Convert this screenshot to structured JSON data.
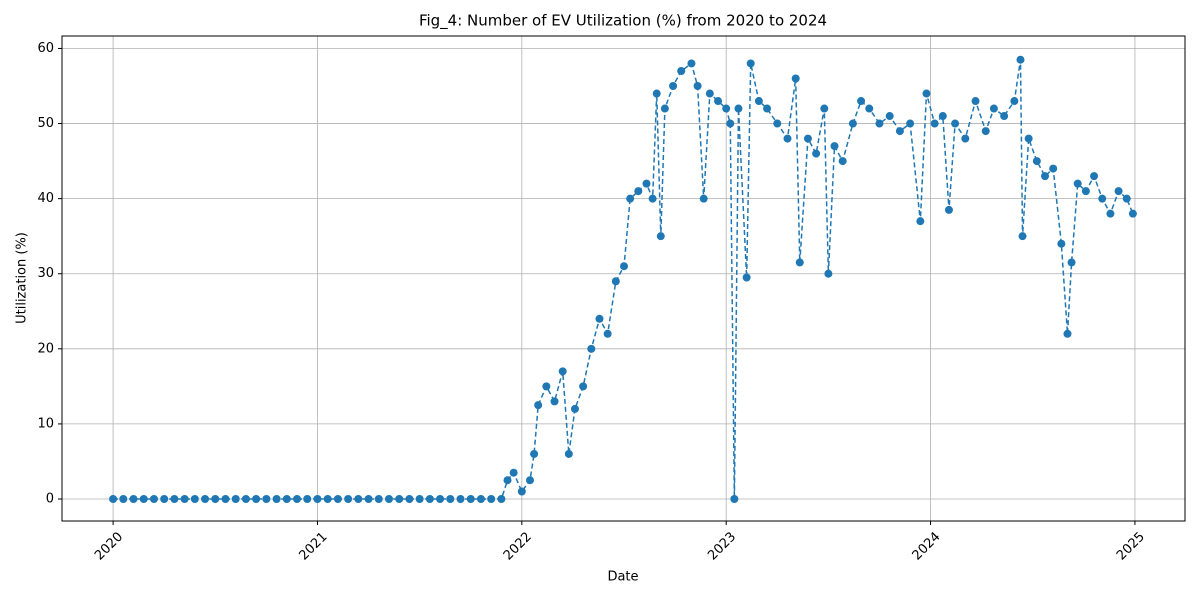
{
  "chart_data": {
    "type": "line",
    "title": "Fig_4: Number of EV Utilization (%) from 2020 to 2024",
    "x_label": "Date",
    "y_label": "Utilization (%)",
    "x": [
      2020,
      2020.05,
      2020.1,
      2020.15,
      2020.2,
      2020.25,
      2020.3,
      2020.35,
      2020.4,
      2020.45,
      2020.5,
      2020.55,
      2020.6,
      2020.65,
      2020.7,
      2020.75,
      2020.8,
      2020.85,
      2020.9,
      2020.95,
      2021,
      2021.05,
      2021.1,
      2021.15,
      2021.2,
      2021.25,
      2021.3,
      2021.35,
      2021.4,
      2021.45,
      2021.5,
      2021.55,
      2021.6,
      2021.65,
      2021.7,
      2021.75,
      2021.8,
      2021.85,
      2021.9,
      2021.93,
      2021.96,
      2022,
      2022.04,
      2022.06,
      2022.08,
      2022.12,
      2022.16,
      2022.2,
      2022.23,
      2022.26,
      2022.3,
      2022.34,
      2022.38,
      2022.42,
      2022.46,
      2022.5,
      2022.53,
      2022.57,
      2022.61,
      2022.64,
      2022.66,
      2022.68,
      2022.7,
      2022.74,
      2022.78,
      2022.83,
      2022.86,
      2022.89,
      2022.92,
      2022.96,
      2023,
      2023.02,
      2023.04,
      2023.06,
      2023.1,
      2023.12,
      2023.16,
      2023.2,
      2023.25,
      2023.3,
      2023.34,
      2023.36,
      2023.4,
      2023.44,
      2023.48,
      2023.5,
      2023.53,
      2023.57,
      2023.62,
      2023.66,
      2023.7,
      2023.75,
      2023.8,
      2023.85,
      2023.9,
      2023.95,
      2023.98,
      2024.02,
      2024.06,
      2024.09,
      2024.12,
      2024.17,
      2024.22,
      2024.27,
      2024.31,
      2024.36,
      2024.41,
      2024.44,
      2024.45,
      2024.48,
      2024.52,
      2024.56,
      2024.6,
      2024.64,
      2024.67,
      2024.69,
      2024.72,
      2024.76,
      2024.8,
      2024.84,
      2024.88,
      2024.92,
      2024.96,
      2024.99
    ],
    "series": [
      {
        "color": "#1f77b4",
        "values": [
          0,
          0,
          0,
          0,
          0,
          0,
          0,
          0,
          0,
          0,
          0,
          0,
          0,
          0,
          0,
          0,
          0,
          0,
          0,
          0,
          0,
          0,
          0,
          0,
          0,
          0,
          0,
          0,
          0,
          0,
          0,
          0,
          0,
          0,
          0,
          0,
          0,
          0,
          0,
          2.5,
          3.5,
          1,
          2.5,
          6,
          12.5,
          15,
          13,
          17,
          6,
          12,
          15,
          20,
          24,
          22,
          29,
          31,
          40,
          41,
          42,
          40,
          54,
          35,
          52,
          55,
          57,
          58,
          55,
          40,
          54,
          53,
          52,
          50,
          0,
          52,
          29.5,
          58,
          53,
          52,
          50,
          48,
          56,
          31.5,
          48,
          46,
          52,
          30,
          47,
          45,
          50,
          53,
          52,
          50,
          51,
          49,
          50,
          37,
          54,
          50,
          51,
          38.5,
          50,
          48,
          53,
          49,
          52,
          51,
          53,
          58.5,
          35,
          48,
          45,
          43,
          44,
          34,
          22,
          31.5,
          42,
          41,
          43,
          40,
          38,
          41,
          40,
          38
        ]
      }
    ],
    "xlim": [
      2019.75,
      2025.245
    ],
    "xticks": [
      2020,
      2021,
      2022,
      2023,
      2024,
      2025
    ],
    "ylim": [
      -2.93,
      61.66
    ],
    "yticks": [
      0,
      10,
      20,
      30,
      40,
      50,
      60
    ],
    "grid": true
  }
}
